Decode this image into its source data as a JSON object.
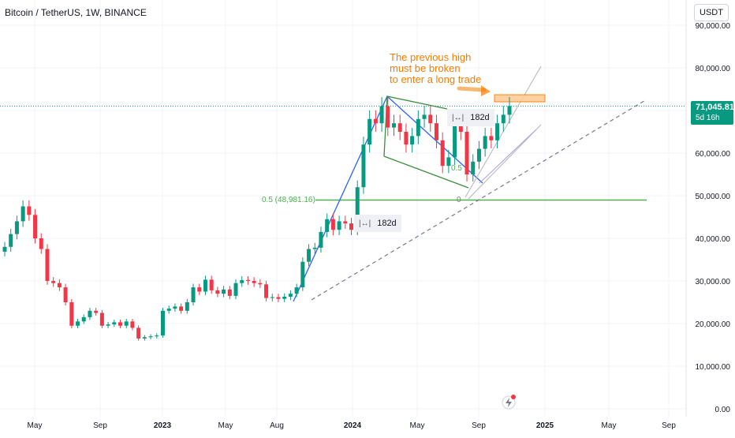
{
  "header": {
    "symbol": "Bitcoin / TetherUS, 1W, BINANCE",
    "currency": "USDT"
  },
  "last_price": {
    "value": "71,045.81",
    "countdown": "5d 16h"
  },
  "annotation": {
    "lines": [
      "The previous high",
      "must be broken",
      "to enter a long trade"
    ]
  },
  "patterns": {
    "label_1": "182d",
    "label_2": "182d"
  },
  "fib": {
    "level_label": "0.5 (48,981.16)",
    "mid_label": "0.5",
    "zero_label": "0"
  },
  "colors": {
    "up": "#089981",
    "down": "#f23645",
    "impulse_line": "#2962ff",
    "channel_green": "#388e3c",
    "fib_level": "#4caf50",
    "annotation": "#f57c00"
  },
  "chart_data": {
    "type": "candlestick",
    "title": "Bitcoin / TetherUS, 1W, BINANCE",
    "y_ticks": [
      "0.00",
      "10,000.00",
      "20,000.00",
      "30,000.00",
      "40,000.00",
      "50,000.00",
      "60,000.00",
      "70,000.00",
      "80,000.00",
      "90,000.00"
    ],
    "x_ticks": [
      "May",
      "Sep",
      "2023",
      "May",
      "Aug",
      "2024",
      "May",
      "Sep",
      "2025",
      "May",
      "Sep"
    ],
    "ylim": [
      0,
      92000
    ],
    "close_series": [
      38000,
      41000,
      44000,
      47500,
      45500,
      40000,
      37500,
      30000,
      29500,
      28500,
      25000,
      19500,
      20500,
      21500,
      23000,
      22500,
      19500,
      19800,
      20300,
      19500,
      20500,
      19000,
      16500,
      16800,
      17000,
      17200,
      23000,
      23500,
      24000,
      23000,
      25000,
      28500,
      27500,
      30300,
      27800,
      27000,
      28000,
      26500,
      29500,
      30200,
      30000,
      29500,
      29200,
      26000,
      26200,
      25800,
      26300,
      27000,
      28500,
      34500,
      37500,
      37800,
      41500,
      44500,
      42000,
      44000,
      43500,
      42000,
      52000,
      62000,
      68000,
      67000,
      71000,
      66000,
      67000,
      65000,
      62000,
      64000,
      68000,
      69000,
      67000,
      63000,
      57000,
      59000,
      68000,
      65000,
      55000,
      58000,
      61000,
      64000,
      63000,
      67000,
      69000,
      71045.81
    ],
    "last_price": 71045.81,
    "fib_level_value": 48981.16,
    "annotations": [
      "The previous high must be broken to enter a long trade"
    ]
  }
}
